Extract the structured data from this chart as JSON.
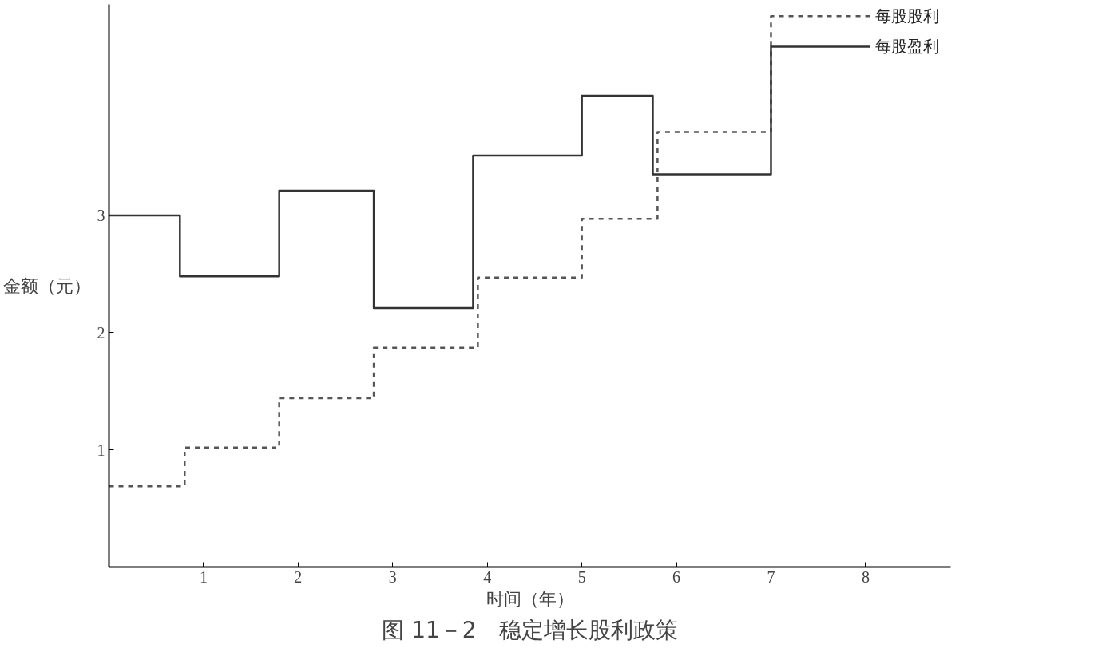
{
  "chart_data": {
    "type": "step",
    "title": "图 11－2　稳定增长股利政策",
    "xlabel": "时间（年）",
    "ylabel": "金额（元）",
    "xlim": [
      0,
      8.9
    ],
    "ylim": [
      0,
      4.8
    ],
    "xticks": [
      1,
      2,
      3,
      4,
      5,
      6,
      7,
      8
    ],
    "yticks": [
      1,
      2,
      3
    ],
    "grid": false,
    "series": [
      {
        "name": "每股股利",
        "color": "#555555",
        "line_style": "dashed",
        "x": [
          0,
          0.8,
          1.8,
          2.8,
          3.9,
          5,
          5.8,
          7,
          8.05
        ],
        "values": [
          0.69,
          1.02,
          1.44,
          1.87,
          2.47,
          2.97,
          3.71,
          4.7,
          4.7
        ]
      },
      {
        "name": "每股盈利",
        "color": "#333333",
        "line_style": "solid",
        "x": [
          0,
          0.75,
          1.8,
          2.8,
          3.85,
          5,
          5.75,
          7,
          8.05
        ],
        "values": [
          3.0,
          2.48,
          3.21,
          2.21,
          3.51,
          4.02,
          3.35,
          4.44,
          4.44
        ]
      }
    ]
  }
}
